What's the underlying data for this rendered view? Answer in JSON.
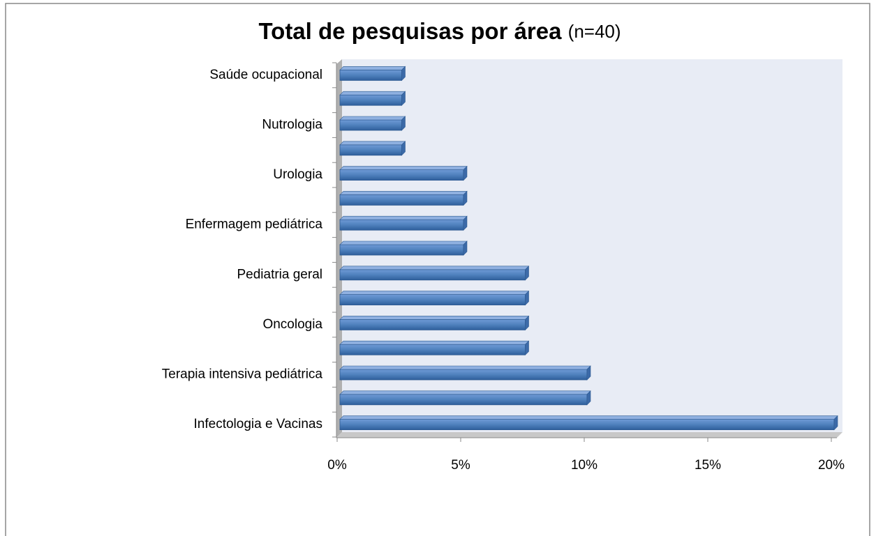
{
  "chart_data": {
    "type": "bar",
    "orientation": "horizontal",
    "title": "Total de pesquisas por área",
    "title_note": "(n=40)",
    "categories": [
      "Saúde ocupacional",
      null,
      "Nutrologia",
      null,
      "Urologia",
      null,
      "Enfermagem pediátrica",
      null,
      "Pediatria geral",
      null,
      "Oncologia",
      null,
      "Terapia intensiva pediátrica",
      null,
      "Infectologia e Vacinas"
    ],
    "values": [
      2.5,
      2.5,
      2.5,
      2.5,
      5,
      5,
      5,
      5,
      7.5,
      7.5,
      7.5,
      7.5,
      10,
      10,
      20
    ],
    "color": "#4f81bd",
    "xlim": [
      0,
      20
    ],
    "xticks": [
      {
        "value": 0,
        "label": "0%"
      },
      {
        "value": 5,
        "label": "5%"
      },
      {
        "value": 10,
        "label": "10%"
      },
      {
        "value": 15,
        "label": "15%"
      },
      {
        "value": 20,
        "label": "20%"
      }
    ],
    "grid": false
  }
}
